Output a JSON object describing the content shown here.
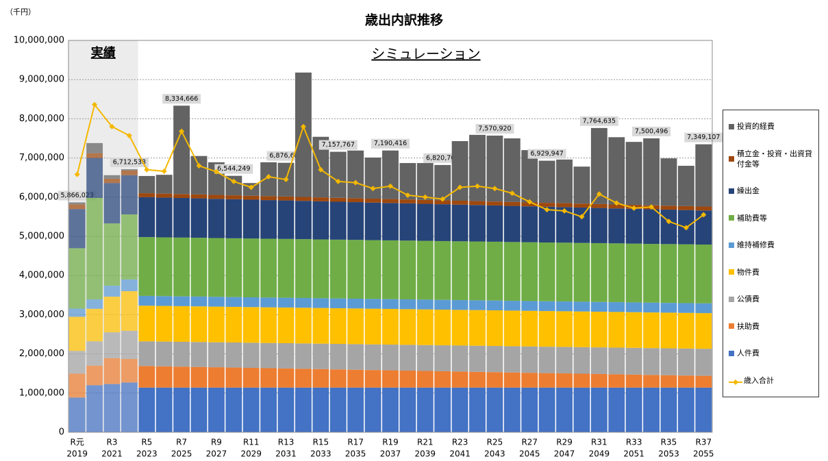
{
  "chart_data": {
    "type": "bar",
    "title": "歳出内訳推移",
    "unit_label": "（千円）",
    "annotations": [
      "実績",
      "シミュレーション"
    ],
    "categories": [
      "R元",
      null,
      "R3",
      null,
      "R5",
      null,
      "R7",
      null,
      "R9",
      null,
      "R11",
      null,
      "R13",
      null,
      "R15",
      null,
      "R17",
      null,
      "R19",
      null,
      "R21",
      null,
      "R23",
      null,
      "R25",
      null,
      "R27",
      null,
      "R29",
      null,
      "R31",
      null,
      "R33",
      null,
      "R35",
      null,
      "R37"
    ],
    "years": [
      2019,
      null,
      2021,
      null,
      2023,
      null,
      2025,
      null,
      2027,
      null,
      2029,
      null,
      2031,
      null,
      2033,
      null,
      2035,
      null,
      2037,
      null,
      2039,
      null,
      2041,
      null,
      2043,
      null,
      2045,
      null,
      2047,
      null,
      2049,
      null,
      2051,
      null,
      2053,
      null,
      2055
    ],
    "ylim": [
      0,
      10000000
    ],
    "yticks": [
      0,
      {
        "value": 1000000,
        "label": "1,000,000"
      },
      {
        "value": 2000000,
        "label": "2,000,000"
      },
      {
        "value": 3000000,
        "label": "3,000,000"
      },
      {
        "value": 4000000,
        "label": "4,000,000"
      },
      {
        "value": 5000000,
        "label": "5,000,000"
      },
      {
        "value": 6000000,
        "label": "6,000,000"
      },
      {
        "value": 7000000,
        "label": "7,000,000"
      },
      {
        "value": 8000000,
        "label": "8,000,000"
      },
      {
        "value": 9000000,
        "label": "9,000,000"
      },
      {
        "value": 10000000,
        "label": "10,000,000"
      }
    ],
    "grid": true,
    "legend": "right",
    "series": [
      {
        "name": "人件費",
        "type": "bar",
        "color": "#4472c4",
        "values": [
          886000,
          1200000,
          1230000,
          1270000,
          1140000,
          1140000,
          1140000,
          1140000,
          1140000,
          1140000,
          1140000,
          1140000,
          1140000,
          1140000,
          1140000,
          1140000,
          1140000,
          1140000,
          1140000,
          1140000,
          1140000,
          1140000,
          1140000,
          1140000,
          1140000,
          1140000,
          1140000,
          1140000,
          1140000,
          1140000,
          1140000,
          1140000,
          1140000,
          1140000,
          1140000,
          1140000,
          1140000
        ]
      },
      {
        "name": "扶助費",
        "type": "bar",
        "color": "#ed7d31",
        "values": [
          610000,
          500000,
          660000,
          600000,
          550000,
          542000,
          534000,
          527000,
          519000,
          511000,
          503000,
          495000,
          488000,
          480000,
          472000,
          464000,
          456000,
          448000,
          441000,
          433000,
          425000,
          417000,
          409000,
          402000,
          394000,
          386000,
          378000,
          370000,
          363000,
          355000,
          347000,
          339000,
          331000,
          323000,
          316000,
          308000,
          300000
        ]
      },
      {
        "name": "公債費",
        "type": "bar",
        "color": "#a5a5a5",
        "values": [
          580000,
          620000,
          660000,
          720000,
          630000,
          632000,
          634000,
          636000,
          637000,
          639000,
          641000,
          643000,
          645000,
          647000,
          649000,
          651000,
          653000,
          654000,
          656000,
          658000,
          660000,
          662000,
          664000,
          666000,
          668000,
          669000,
          671000,
          673000,
          675000,
          677000,
          679000,
          681000,
          683000,
          684000,
          686000,
          688000,
          690000
        ]
      },
      {
        "name": "物件費",
        "type": "bar",
        "color": "#ffc000",
        "values": [
          870000,
          830000,
          910000,
          1010000,
          910000,
          910000,
          910000,
          910000,
          910000,
          910000,
          910000,
          910000,
          910000,
          910000,
          910000,
          910000,
          910000,
          910000,
          910000,
          910000,
          910000,
          910000,
          910000,
          910000,
          910000,
          910000,
          910000,
          910000,
          910000,
          910000,
          910000,
          910000,
          910000,
          910000,
          910000,
          910000,
          910000
        ]
      },
      {
        "name": "維持補修費",
        "type": "bar",
        "color": "#5b9bd5",
        "values": [
          210000,
          240000,
          280000,
          300000,
          250000,
          250000,
          250000,
          250000,
          250000,
          250000,
          250000,
          250000,
          250000,
          250000,
          250000,
          250000,
          250000,
          250000,
          250000,
          250000,
          250000,
          250000,
          250000,
          250000,
          250000,
          250000,
          250000,
          250000,
          250000,
          250000,
          250000,
          250000,
          250000,
          250000,
          250000,
          250000,
          250000
        ]
      },
      {
        "name": "補助費等",
        "type": "bar",
        "color": "#70ad47",
        "values": [
          1540000,
          2590000,
          1590000,
          1660000,
          1500000,
          1500000,
          1500000,
          1500000,
          1500000,
          1500000,
          1500000,
          1500000,
          1500000,
          1500000,
          1500000,
          1500000,
          1500000,
          1500000,
          1500000,
          1500000,
          1500000,
          1500000,
          1500000,
          1500000,
          1500000,
          1500000,
          1500000,
          1500000,
          1500000,
          1500000,
          1500000,
          1500000,
          1500000,
          1500000,
          1500000,
          1500000,
          1500000
        ]
      },
      {
        "name": "繰出金",
        "type": "bar",
        "color": "#264478",
        "values": [
          1000000,
          1020000,
          1030000,
          1000000,
          1020000,
          1015000,
          1011000,
          1006000,
          1001000,
          997000,
          992000,
          987000,
          983000,
          978000,
          973000,
          968000,
          964000,
          959000,
          954000,
          950000,
          945000,
          940000,
          936000,
          931000,
          926000,
          922000,
          917000,
          912000,
          908000,
          903000,
          898000,
          893000,
          889000,
          884000,
          879000,
          875000,
          870000
        ]
      },
      {
        "name": "積立金・投資・出資貸付金等",
        "type": "bar",
        "color": "#9e480e",
        "values": [
          120000,
          120000,
          110000,
          120000,
          100000,
          100000,
          100000,
          100000,
          100000,
          100000,
          100000,
          100000,
          100000,
          100000,
          100000,
          100000,
          100000,
          100000,
          100000,
          100000,
          100000,
          100000,
          100000,
          100000,
          100000,
          100000,
          100000,
          100000,
          100000,
          100000,
          100000,
          100000,
          100000,
          100000,
          100000,
          100000,
          100000
        ]
      },
      {
        "name": "投資的経費",
        "type": "bar",
        "color": "#636363",
        "values": [
          50023,
          260000,
          90000,
          32538,
          440000,
          481000,
          2255666,
          981000,
          833000,
          497249,
          324000,
          865000,
          860685,
          3175000,
          1546000,
          1174767,
          1217000,
          1049000,
          1239416,
          929000,
          940000,
          901703,
          1521000,
          1691000,
          1682920,
          1623000,
          1334000,
          1074947,
          1114000,
          945000,
          1940635,
          1717000,
          1607000,
          1709496,
          1209000,
          1029000,
          1589107
        ]
      },
      {
        "name": "歳入合計",
        "type": "line",
        "color": "#f5b800",
        "values": [
          6580000,
          8360000,
          7800000,
          7570000,
          6700000,
          6660000,
          7680000,
          6800000,
          6650000,
          6400000,
          6250000,
          6520000,
          6450000,
          7800000,
          6700000,
          6400000,
          6370000,
          6220000,
          6280000,
          6050000,
          6000000,
          5950000,
          6250000,
          6280000,
          6220000,
          6100000,
          5880000,
          5680000,
          5650000,
          5500000,
          6080000,
          5850000,
          5720000,
          5750000,
          5380000,
          5220000,
          5550000
        ]
      }
    ],
    "total_labels": [
      "5,866,023",
      null,
      null,
      "6,712,538",
      null,
      null,
      "8,334,666",
      null,
      null,
      "6,544,249",
      null,
      null,
      "6,876,685",
      null,
      null,
      "7,157,767",
      null,
      null,
      "7,190,416",
      null,
      null,
      "6,820,703",
      null,
      null,
      "7,570,920",
      null,
      null,
      "6,929,947",
      null,
      null,
      "7,764,635",
      null,
      null,
      "7,500,496",
      null,
      null,
      "7,349,107"
    ]
  }
}
